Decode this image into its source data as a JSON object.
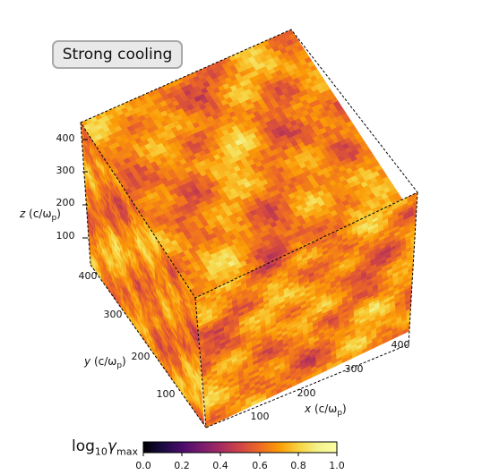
{
  "badge": {
    "text": "Strong cooling"
  },
  "axes": {
    "x": {
      "label_var": "x",
      "label_unit": "(c/ω",
      "label_sub": "p",
      "label_close": ")",
      "ticks": [
        "100",
        "200",
        "300",
        "400"
      ]
    },
    "y": {
      "label_var": "y",
      "label_unit": "(c/ω",
      "label_sub": "p",
      "label_close": ")",
      "ticks": [
        "100",
        "200",
        "300",
        "400"
      ]
    },
    "z": {
      "label_var": "z",
      "label_unit": "(c/ω",
      "label_sub": "p",
      "label_close": ")",
      "ticks": [
        "100",
        "200",
        "300",
        "400"
      ]
    }
  },
  "colorbar": {
    "label_prefix": "log",
    "label_base": "10",
    "label_var": "γ",
    "label_sub": "max",
    "ticks": [
      "0.0",
      "0.2",
      "0.4",
      "0.6",
      "0.8",
      "1.0"
    ],
    "colormap": "inferno",
    "range": [
      0.0,
      1.0
    ]
  },
  "colors": {
    "cube_edge": "#000000"
  }
}
